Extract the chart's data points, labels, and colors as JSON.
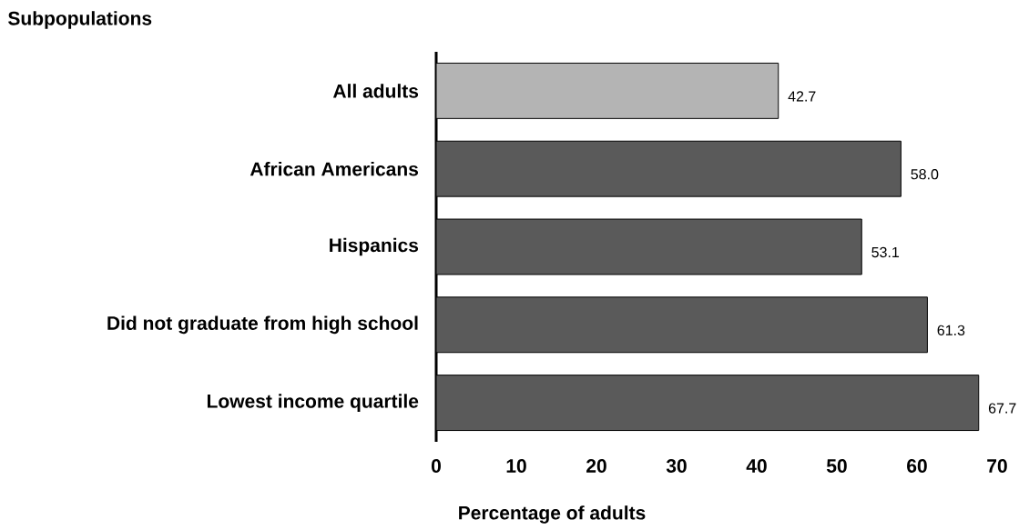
{
  "chart_data": {
    "type": "bar",
    "orientation": "horizontal",
    "xlabel": "Percentage of adults",
    "ylabel": "Subpopulations",
    "categories": [
      "All adults",
      "African Americans",
      "Hispanics",
      "Did not graduate from high school",
      "Lowest income quartile"
    ],
    "values": [
      42.7,
      58.0,
      53.1,
      61.3,
      67.7
    ],
    "colors": [
      "#b4b4b4",
      "#5a5a5a",
      "#5a5a5a",
      "#5a5a5a",
      "#5a5a5a"
    ],
    "xlim": [
      0,
      70
    ],
    "xticks": [
      0,
      10,
      20,
      30,
      40,
      50,
      60,
      70
    ],
    "value_labels": [
      "42.7",
      "58.0",
      "53.1",
      "61.3",
      "67.7"
    ],
    "grid": false
  }
}
